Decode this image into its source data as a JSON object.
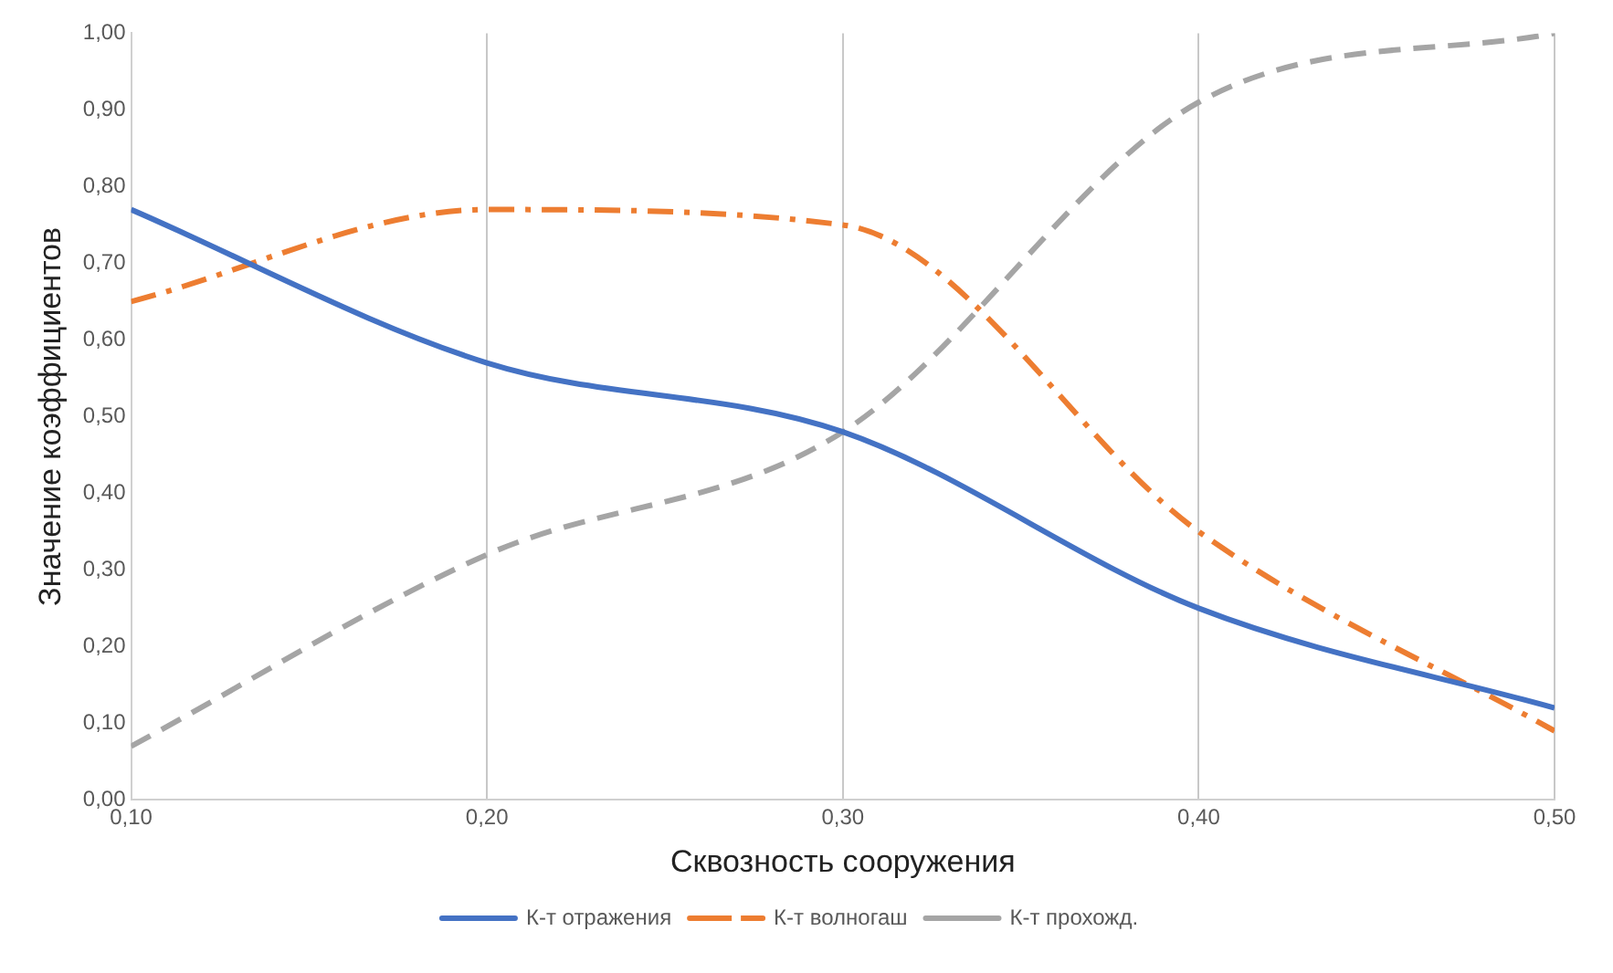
{
  "chart_data": {
    "type": "line",
    "xlabel": "Сквозность сооружения",
    "ylabel": "Значение коэффициентов",
    "x": [
      0.1,
      0.2,
      0.3,
      0.4,
      0.5
    ],
    "series": [
      {
        "name": "К-т отражения",
        "color": "#4472c4",
        "line_style": "solid",
        "values": [
          0.77,
          0.57,
          0.48,
          0.25,
          0.12
        ]
      },
      {
        "name": "К-т волногаш",
        "color": "#ed7d31",
        "line_style": "dashdot",
        "values": [
          0.65,
          0.77,
          0.75,
          0.35,
          0.09
        ]
      },
      {
        "name": "К-т прохожд.",
        "color": "#a5a5a5",
        "line_style": "dashed",
        "values": [
          0.07,
          0.32,
          0.48,
          0.91,
          1.0
        ]
      }
    ],
    "xlim": [
      0.1,
      0.5
    ],
    "xticks": [
      {
        "value": 0.1,
        "label": "0,10"
      },
      {
        "value": 0.2,
        "label": "0,20"
      },
      {
        "value": 0.3,
        "label": "0,30"
      },
      {
        "value": 0.4,
        "label": "0,40"
      },
      {
        "value": 0.5,
        "label": "0,50"
      }
    ],
    "ylim": [
      0,
      1
    ],
    "yticks": [
      {
        "value": 0,
        "label": "0,00"
      },
      {
        "value": 0.1,
        "label": "0,10"
      },
      {
        "value": 0.2,
        "label": "0,20"
      },
      {
        "value": 0.3,
        "label": "0,30"
      },
      {
        "value": 0.4,
        "label": "0,40"
      },
      {
        "value": 0.5,
        "label": "0,50"
      },
      {
        "value": 0.6,
        "label": "0,60"
      },
      {
        "value": 0.7,
        "label": "0,70"
      },
      {
        "value": 0.8,
        "label": "0,80"
      },
      {
        "value": 0.9,
        "label": "0,90"
      },
      {
        "value": 1.0,
        "label": "1,00"
      }
    ],
    "grid": "x",
    "legend": "bottom",
    "marker": "none"
  }
}
